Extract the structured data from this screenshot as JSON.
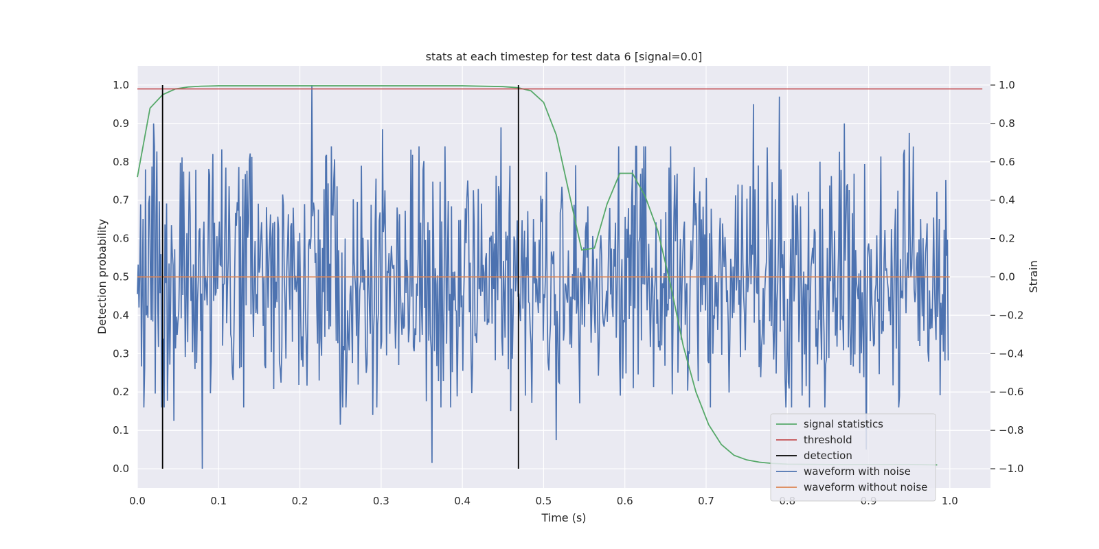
{
  "chart_data": {
    "type": "line",
    "title": "stats at each timestep for test data 6 [signal=0.0]",
    "xlabel": "Time (s)",
    "ylabel": "Detection probability",
    "y2label": "Strain",
    "xlim": [
      0.0,
      1.05
    ],
    "ylim": [
      -0.05,
      1.05
    ],
    "y2lim": [
      -1.1,
      1.1
    ],
    "xticks": [
      "0.0",
      "0.1",
      "0.2",
      "0.3",
      "0.4",
      "0.5",
      "0.6",
      "0.7",
      "0.8",
      "0.9",
      "1.0"
    ],
    "yticks": [
      "0.0",
      "0.1",
      "0.2",
      "0.3",
      "0.4",
      "0.5",
      "0.6",
      "0.7",
      "0.8",
      "0.9",
      "1.0"
    ],
    "y2ticks": [
      "−1.0",
      "−0.8",
      "−0.6",
      "−0.4",
      "−0.2",
      "0.0",
      "0.2",
      "0.4",
      "0.6",
      "0.8",
      "1.0"
    ],
    "grid": true,
    "legend_position": "lower-right",
    "legend": [
      {
        "label": "signal statistics",
        "color": "#55a868"
      },
      {
        "label": "threshold",
        "color": "#c44e52"
      },
      {
        "label": "detection",
        "color": "#000000"
      },
      {
        "label": "waveform with noise",
        "color": "#4c72b0"
      },
      {
        "label": "waveform without noise",
        "color": "#dd8452"
      }
    ],
    "signal_statistics": {
      "x": [
        0.0,
        0.0156,
        0.0312,
        0.0469,
        0.0625,
        0.0781,
        0.1,
        0.2,
        0.3,
        0.4,
        0.45,
        0.4688,
        0.4844,
        0.5,
        0.5156,
        0.5312,
        0.5469,
        0.5625,
        0.5781,
        0.5938,
        0.6094,
        0.625,
        0.6406,
        0.6562,
        0.6719,
        0.6875,
        0.7031,
        0.7188,
        0.7344,
        0.75,
        0.7656,
        0.7812,
        0.8,
        0.85,
        0.9,
        0.95,
        0.9844
      ],
      "y": [
        0.76,
        0.94,
        0.975,
        0.99,
        0.995,
        0.997,
        0.998,
        0.998,
        0.998,
        0.998,
        0.996,
        0.993,
        0.985,
        0.955,
        0.87,
        0.72,
        0.57,
        0.575,
        0.69,
        0.77,
        0.77,
        0.71,
        0.62,
        0.48,
        0.32,
        0.2,
        0.115,
        0.063,
        0.035,
        0.023,
        0.017,
        0.014,
        0.012,
        0.011,
        0.011,
        0.011,
        0.01
      ]
    },
    "threshold": {
      "y": 0.99,
      "x": [
        0.0,
        1.04
      ]
    },
    "detections": {
      "x": [
        0.031,
        0.469
      ],
      "y": [
        0.0,
        1.0
      ]
    },
    "waveform_without_noise": {
      "x": [
        0.0,
        1.0
      ],
      "y": [
        0.0,
        0.0
      ]
    },
    "waveform_with_noise": {
      "x_start": 0.0,
      "x_end": 0.998,
      "num_points": 1000,
      "strain_range": [
        -1.0,
        1.0
      ],
      "spikes": [
        {
          "x": 0.215,
          "y": 1.0
        },
        {
          "x": 0.08,
          "y": -1.0
        },
        {
          "x": 0.02,
          "y": 0.8
        },
        {
          "x": 0.302,
          "y": 0.77
        },
        {
          "x": 0.363,
          "y": -0.97
        },
        {
          "x": 0.448,
          "y": 0.78
        },
        {
          "x": 0.758,
          "y": 0.9
        },
        {
          "x": 0.79,
          "y": 0.94
        },
        {
          "x": 0.897,
          "y": -0.9
        },
        {
          "x": 0.87,
          "y": 0.8
        },
        {
          "x": 0.515,
          "y": -0.85
        },
        {
          "x": 0.25,
          "y": -0.77
        },
        {
          "x": 0.045,
          "y": -0.75
        },
        {
          "x": 0.29,
          "y": -0.72
        },
        {
          "x": 0.46,
          "y": -0.7
        },
        {
          "x": 0.95,
          "y": 0.75
        }
      ]
    }
  }
}
